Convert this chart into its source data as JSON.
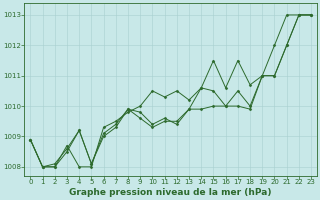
{
  "title": "Graphe pression niveau de la mer (hPa)",
  "x": [
    0,
    1,
    2,
    3,
    4,
    5,
    6,
    7,
    8,
    9,
    10,
    11,
    12,
    13,
    14,
    15,
    16,
    17,
    18,
    19,
    20,
    21,
    22,
    23
  ],
  "y_line1": [
    1008.9,
    1008.0,
    1008.0,
    1008.7,
    1008.0,
    1008.0,
    1009.3,
    1009.5,
    1009.8,
    1010.0,
    1010.5,
    1010.3,
    1010.5,
    1010.2,
    1010.6,
    1010.5,
    1010.0,
    1010.5,
    1010.0,
    1011.0,
    1012.0,
    1013.0,
    1013.0,
    1013.0
  ],
  "y_line2": [
    1008.9,
    1008.0,
    1008.0,
    1008.5,
    1009.2,
    1008.1,
    1009.1,
    1009.4,
    1009.9,
    1009.8,
    1009.4,
    1009.6,
    1009.4,
    1009.9,
    1010.6,
    1011.5,
    1010.6,
    1011.5,
    1010.7,
    1011.0,
    1011.0,
    1012.0,
    1013.0,
    1013.0
  ],
  "y_line3": [
    1008.9,
    1008.0,
    1008.1,
    1008.6,
    1009.2,
    1008.1,
    1009.0,
    1009.3,
    1009.9,
    1009.6,
    1009.3,
    1009.5,
    1009.5,
    1009.9,
    1009.9,
    1010.0,
    1010.0,
    1010.0,
    1009.9,
    1011.0,
    1011.0,
    1012.0,
    1013.0,
    1013.0
  ],
  "ylim": [
    1007.7,
    1013.4
  ],
  "yticks": [
    1008,
    1009,
    1010,
    1011,
    1012,
    1013
  ],
  "xlim": [
    -0.5,
    23.5
  ],
  "xticks": [
    0,
    1,
    2,
    3,
    4,
    5,
    6,
    7,
    8,
    9,
    10,
    11,
    12,
    13,
    14,
    15,
    16,
    17,
    18,
    19,
    20,
    21,
    22,
    23
  ],
  "line_color": "#2d6a2d",
  "bg_color": "#c8e8e8",
  "grid_color": "#a8d0d0",
  "marker": "D",
  "marker_size": 1.5,
  "line_width": 0.7,
  "title_fontsize": 6.5,
  "tick_fontsize": 5.0
}
